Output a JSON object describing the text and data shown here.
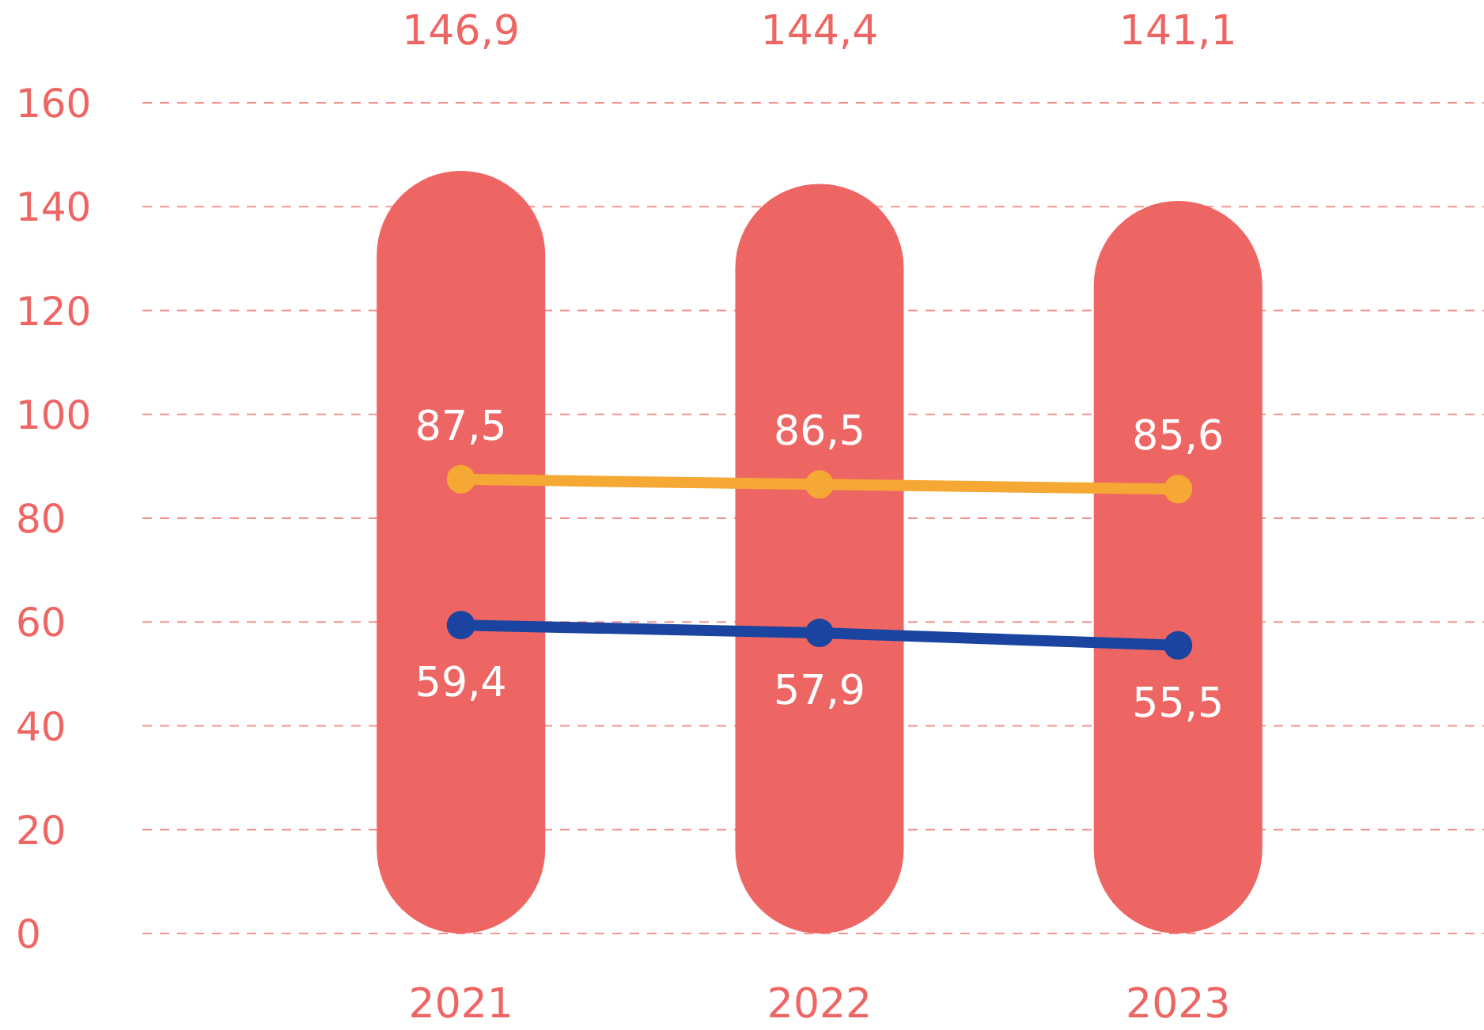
{
  "chart_data": {
    "type": "bar",
    "categories": [
      "2021",
      "2022",
      "2023"
    ],
    "series": [
      {
        "color": "#ee6664",
        "values": [
          146.9,
          144.4,
          141.1
        ],
        "value_labels": [
          "146,9",
          "144,4",
          "141,1"
        ]
      },
      {
        "type": "line",
        "color": "#f5a833",
        "values": [
          87.5,
          86.5,
          85.6
        ],
        "value_labels": [
          "87,5",
          "86,5",
          "85,6"
        ]
      },
      {
        "type": "line",
        "color": "#1a44a0",
        "values": [
          59.4,
          57.9,
          55.5
        ],
        "value_labels": [
          "59,4",
          "57,9",
          "55,5"
        ]
      }
    ],
    "ylim": [
      0,
      160
    ],
    "yticks": [
      0,
      20,
      40,
      60,
      80,
      100,
      120,
      140,
      160
    ],
    "grid": "y",
    "marker": "circle",
    "line_style": "solid"
  }
}
